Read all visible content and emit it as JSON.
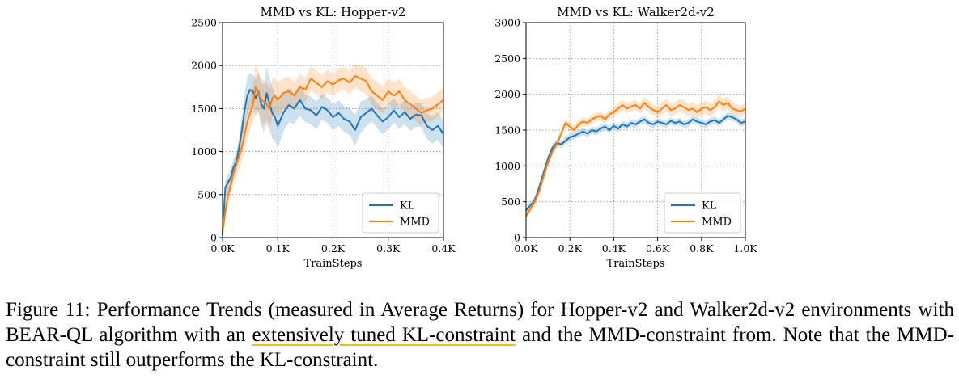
{
  "chart_data": [
    {
      "type": "line",
      "title": "MMD vs KL: Hopper-v2",
      "xlabel": "TrainSteps",
      "ylabel": "",
      "xlim": [
        0,
        0.4
      ],
      "ylim": [
        0,
        2500
      ],
      "xticks": [
        0,
        0.1,
        0.2,
        0.3,
        0.4
      ],
      "xtick_labels": [
        "0.0K",
        "0.1K",
        "0.2K",
        "0.3K",
        "0.4K"
      ],
      "yticks": [
        0,
        500,
        1000,
        1500,
        2000,
        2500
      ],
      "ytick_labels": [
        "0",
        "500",
        "1000",
        "1500",
        "2000",
        "2500"
      ],
      "grid": true,
      "legend": "lower-right",
      "series": [
        {
          "name": "KL",
          "color": "#1f77b4",
          "x": [
            0,
            0.005,
            0.01,
            0.015,
            0.02,
            0.025,
            0.03,
            0.035,
            0.04,
            0.045,
            0.05,
            0.055,
            0.06,
            0.065,
            0.07,
            0.075,
            0.08,
            0.085,
            0.09,
            0.095,
            0.1,
            0.11,
            0.12,
            0.13,
            0.14,
            0.15,
            0.16,
            0.17,
            0.18,
            0.19,
            0.2,
            0.21,
            0.22,
            0.23,
            0.24,
            0.25,
            0.26,
            0.27,
            0.28,
            0.29,
            0.3,
            0.31,
            0.32,
            0.33,
            0.34,
            0.35,
            0.36,
            0.37,
            0.38,
            0.39,
            0.4
          ],
          "y": [
            30,
            580,
            640,
            700,
            820,
            880,
            1050,
            1250,
            1480,
            1650,
            1720,
            1700,
            1620,
            1700,
            1550,
            1500,
            1680,
            1560,
            1450,
            1400,
            1300,
            1450,
            1540,
            1500,
            1600,
            1500,
            1480,
            1420,
            1520,
            1480,
            1400,
            1450,
            1380,
            1350,
            1250,
            1400,
            1450,
            1500,
            1420,
            1350,
            1400,
            1480,
            1400,
            1460,
            1380,
            1430,
            1420,
            1300,
            1250,
            1300,
            1200
          ],
          "band": [
            40,
            80,
            100,
            100,
            100,
            100,
            120,
            150,
            200,
            220,
            200,
            200,
            220,
            220,
            250,
            280,
            300,
            300,
            300,
            280,
            260,
            220,
            200,
            180,
            180,
            160,
            160,
            160,
            150,
            150,
            150,
            150,
            150,
            160,
            180,
            180,
            160,
            150,
            150,
            150,
            150,
            140,
            140,
            140,
            140,
            140,
            140,
            150,
            160,
            160,
            160
          ]
        },
        {
          "name": "MMD",
          "color": "#ff7f0e",
          "x": [
            0,
            0.005,
            0.01,
            0.015,
            0.02,
            0.025,
            0.03,
            0.035,
            0.04,
            0.045,
            0.05,
            0.055,
            0.06,
            0.065,
            0.07,
            0.075,
            0.08,
            0.085,
            0.09,
            0.095,
            0.1,
            0.11,
            0.12,
            0.13,
            0.14,
            0.15,
            0.16,
            0.17,
            0.18,
            0.19,
            0.2,
            0.21,
            0.22,
            0.23,
            0.24,
            0.25,
            0.26,
            0.27,
            0.28,
            0.29,
            0.3,
            0.31,
            0.32,
            0.33,
            0.34,
            0.35,
            0.36,
            0.37,
            0.38,
            0.39,
            0.4
          ],
          "y": [
            60,
            300,
            500,
            600,
            750,
            850,
            950,
            1050,
            1200,
            1350,
            1450,
            1550,
            1750,
            1680,
            1600,
            1580,
            1550,
            1500,
            1620,
            1650,
            1600,
            1680,
            1700,
            1650,
            1750,
            1720,
            1850,
            1800,
            1750,
            1820,
            1780,
            1830,
            1850,
            1800,
            1880,
            1850,
            1820,
            1700,
            1650,
            1600,
            1700,
            1650,
            1700,
            1600,
            1550,
            1500,
            1450,
            1480,
            1500,
            1550,
            1600
          ],
          "band": [
            60,
            100,
            120,
            120,
            130,
            140,
            150,
            160,
            180,
            200,
            200,
            220,
            250,
            250,
            250,
            250,
            250,
            230,
            220,
            210,
            200,
            180,
            170,
            160,
            150,
            140,
            140,
            140,
            140,
            130,
            130,
            130,
            130,
            130,
            140,
            150,
            150,
            160,
            160,
            160,
            150,
            150,
            150,
            150,
            150,
            150,
            150,
            140,
            140,
            140,
            140
          ]
        }
      ]
    },
    {
      "type": "line",
      "title": "MMD vs KL: Walker2d-v2",
      "xlabel": "TrainSteps",
      "ylabel": "",
      "xlim": [
        0,
        1.0
      ],
      "ylim": [
        0,
        3000
      ],
      "xticks": [
        0,
        0.2,
        0.4,
        0.6,
        0.8,
        1.0
      ],
      "xtick_labels": [
        "0.0K",
        "0.2K",
        "0.4K",
        "0.6K",
        "0.8K",
        "1.0K"
      ],
      "yticks": [
        0,
        500,
        1000,
        1500,
        2000,
        2500,
        3000
      ],
      "ytick_labels": [
        "0",
        "500",
        "1000",
        "1500",
        "2000",
        "2500",
        "3000"
      ],
      "grid": true,
      "legend": "lower-right",
      "series": [
        {
          "name": "KL",
          "color": "#1f77b4",
          "x": [
            0,
            0.02,
            0.04,
            0.06,
            0.08,
            0.1,
            0.12,
            0.14,
            0.16,
            0.18,
            0.2,
            0.22,
            0.24,
            0.26,
            0.28,
            0.3,
            0.32,
            0.34,
            0.36,
            0.38,
            0.4,
            0.42,
            0.44,
            0.46,
            0.48,
            0.5,
            0.52,
            0.54,
            0.56,
            0.58,
            0.6,
            0.62,
            0.64,
            0.66,
            0.68,
            0.7,
            0.72,
            0.74,
            0.76,
            0.78,
            0.8,
            0.82,
            0.84,
            0.86,
            0.88,
            0.9,
            0.92,
            0.94,
            0.96,
            0.98,
            1.0
          ],
          "y": [
            380,
            450,
            520,
            700,
            900,
            1100,
            1250,
            1320,
            1300,
            1350,
            1400,
            1420,
            1450,
            1480,
            1450,
            1500,
            1480,
            1520,
            1550,
            1500,
            1560,
            1520,
            1580,
            1550,
            1600,
            1580,
            1620,
            1650,
            1600,
            1580,
            1620,
            1600,
            1580,
            1630,
            1600,
            1620,
            1580,
            1600,
            1650,
            1620,
            1600,
            1580,
            1620,
            1640,
            1600,
            1650,
            1700,
            1680,
            1650,
            1600,
            1620
          ],
          "band": [
            40,
            50,
            60,
            60,
            60,
            60,
            50,
            50,
            50,
            50,
            50,
            50,
            50,
            50,
            50,
            50,
            50,
            50,
            50,
            50,
            50,
            50,
            50,
            50,
            50,
            50,
            50,
            50,
            50,
            50,
            50,
            50,
            50,
            50,
            50,
            50,
            50,
            50,
            50,
            50,
            50,
            50,
            50,
            50,
            50,
            50,
            50,
            50,
            50,
            50,
            50
          ]
        },
        {
          "name": "MMD",
          "color": "#ff7f0e",
          "x": [
            0,
            0.02,
            0.04,
            0.06,
            0.08,
            0.1,
            0.12,
            0.14,
            0.16,
            0.18,
            0.2,
            0.22,
            0.24,
            0.26,
            0.28,
            0.3,
            0.32,
            0.34,
            0.36,
            0.38,
            0.4,
            0.42,
            0.44,
            0.46,
            0.48,
            0.5,
            0.52,
            0.54,
            0.56,
            0.58,
            0.6,
            0.62,
            0.64,
            0.66,
            0.68,
            0.7,
            0.72,
            0.74,
            0.76,
            0.78,
            0.8,
            0.82,
            0.84,
            0.86,
            0.88,
            0.9,
            0.92,
            0.94,
            0.96,
            0.98,
            1.0
          ],
          "y": [
            300,
            400,
            500,
            650,
            850,
            1050,
            1200,
            1300,
            1450,
            1600,
            1550,
            1500,
            1580,
            1620,
            1600,
            1650,
            1680,
            1700,
            1650,
            1720,
            1750,
            1800,
            1850,
            1800,
            1830,
            1850,
            1800,
            1880,
            1820,
            1780,
            1750,
            1800,
            1850,
            1780,
            1800,
            1850,
            1820,
            1780,
            1800,
            1750,
            1800,
            1820,
            1780,
            1820,
            1900,
            1850,
            1880,
            1800,
            1780,
            1760,
            1800
          ],
          "band": [
            40,
            50,
            60,
            60,
            60,
            60,
            60,
            60,
            60,
            60,
            60,
            60,
            60,
            60,
            60,
            60,
            60,
            60,
            60,
            60,
            70,
            70,
            70,
            70,
            70,
            70,
            70,
            80,
            80,
            80,
            80,
            90,
            90,
            90,
            90,
            90,
            90,
            90,
            90,
            90,
            90,
            90,
            90,
            90,
            90,
            90,
            90,
            80,
            80,
            80,
            80
          ]
        }
      ]
    }
  ],
  "caption": {
    "before": "Figure 11: Performance Trends (measured in Average Returns) for Hopper-v2 and Walker2d-v2 environments with BEAR-QL algorithm with an ",
    "highlight": "extensively tuned KL-constraint",
    "after": " and the MMD-constraint from. Note that the MMD-constraint still outperforms the KL-constraint."
  }
}
